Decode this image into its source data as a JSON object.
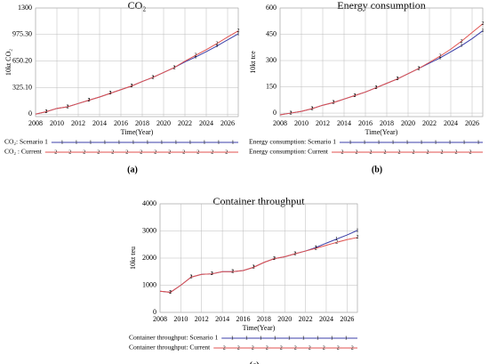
{
  "chart_data": [
    {
      "type": "line",
      "title": "CO₂",
      "panel_label": "(a)",
      "y_label": "10kt  CO₂",
      "x_label": "Time(Year)",
      "x": [
        2008,
        2009,
        2010,
        2011,
        2012,
        2013,
        2014,
        2015,
        2016,
        2017,
        2018,
        2019,
        2020,
        2021,
        2022,
        2023,
        2024,
        2025,
        2026,
        2027
      ],
      "xlim": [
        2008,
        2027
      ],
      "xticks": [
        2008,
        2010,
        2012,
        2014,
        2016,
        2018,
        2020,
        2022,
        2024,
        2026
      ],
      "ylim": [
        -30,
        1300
      ],
      "yticks": [
        0,
        {
          "value": 325.1,
          "label": "325.10"
        },
        {
          "value": 650.2,
          "label": "650.20"
        },
        {
          "value": 975.3,
          "label": "975.30"
        },
        1300
      ],
      "grid": true,
      "series": [
        {
          "name": "CO₂: Scenario 1",
          "marker": "1",
          "color": "#3b3fa8",
          "values": [
            0,
            30,
            70,
            90,
            130,
            170,
            210,
            255,
            300,
            345,
            400,
            450,
            510,
            570,
            640,
            700,
            765,
            835,
            910,
            985
          ]
        },
        {
          "name": "CO₂ : Current",
          "marker": "2",
          "color": "#e0524f",
          "values": [
            0,
            30,
            70,
            90,
            130,
            170,
            210,
            255,
            300,
            345,
            400,
            450,
            510,
            570,
            650,
            720,
            790,
            865,
            945,
            1020
          ]
        }
      ]
    },
    {
      "type": "line",
      "title": "Energy consumption",
      "panel_label": "(b)",
      "y_label": "10kt  tce",
      "x_label": "Time(Year)",
      "x": [
        2008,
        2009,
        2010,
        2011,
        2012,
        2013,
        2014,
        2015,
        2016,
        2017,
        2018,
        2019,
        2020,
        2021,
        2022,
        2023,
        2024,
        2025,
        2026,
        2027
      ],
      "xlim": [
        2008,
        2027
      ],
      "xticks": [
        2008,
        2010,
        2012,
        2014,
        2016,
        2018,
        2020,
        2022,
        2024,
        2026
      ],
      "ylim": [
        -20,
        600
      ],
      "yticks": [
        0,
        150,
        300,
        450,
        600
      ],
      "grid": true,
      "series": [
        {
          "name": "Energy consumption: Scenario 1",
          "marker": "1",
          "color": "#3b3fa8",
          "values": [
            -10,
            0,
            10,
            25,
            45,
            60,
            80,
            100,
            120,
            145,
            170,
            195,
            225,
            255,
            285,
            315,
            350,
            385,
            425,
            470
          ]
        },
        {
          "name": "Energy consumption: Current",
          "marker": "2",
          "color": "#e0524f",
          "values": [
            -10,
            0,
            10,
            25,
            45,
            60,
            80,
            100,
            120,
            145,
            170,
            195,
            225,
            255,
            290,
            325,
            365,
            410,
            460,
            510
          ]
        }
      ]
    },
    {
      "type": "line",
      "title": "Container throughput",
      "panel_label": "(c)",
      "y_label": "10kt  teu",
      "x_label": "Time(Year)",
      "x": [
        2008,
        2009,
        2010,
        2011,
        2012,
        2013,
        2014,
        2015,
        2016,
        2017,
        2018,
        2019,
        2020,
        2021,
        2022,
        2023,
        2024,
        2025,
        2026,
        2027
      ],
      "xlim": [
        2008,
        2027
      ],
      "xticks": [
        2008,
        2010,
        2012,
        2014,
        2016,
        2018,
        2020,
        2022,
        2024,
        2026
      ],
      "ylim": [
        0,
        4000
      ],
      "yticks": [
        0,
        1000,
        2000,
        3000,
        4000
      ],
      "grid": true,
      "series": [
        {
          "name": "Container throughput: Scenario 1",
          "marker": "1",
          "color": "#3b3fa8",
          "values": [
            780,
            740,
            1000,
            1300,
            1400,
            1420,
            1500,
            1500,
            1540,
            1660,
            1840,
            1980,
            2050,
            2160,
            2260,
            2390,
            2550,
            2700,
            2850,
            3020
          ]
        },
        {
          "name": "Container throughput: Current",
          "marker": "2",
          "color": "#e0524f",
          "values": [
            780,
            740,
            1000,
            1300,
            1400,
            1420,
            1500,
            1500,
            1540,
            1660,
            1840,
            1980,
            2050,
            2160,
            2260,
            2360,
            2470,
            2580,
            2680,
            2760
          ]
        }
      ]
    }
  ]
}
